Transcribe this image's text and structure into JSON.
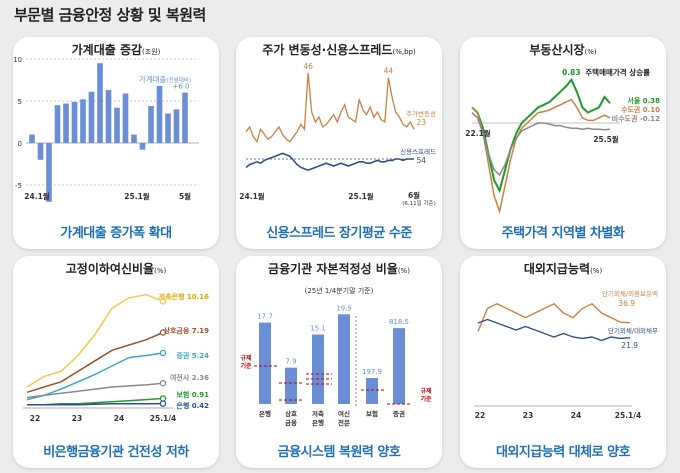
{
  "page_title": "부문별 금융안정 상황 및 복원력",
  "colors": {
    "blue": "#6b8fd6",
    "darkblue": "#2f4f8f",
    "orange": "#cd7f45",
    "green": "#1f9a2b",
    "gray": "#8a8a8a",
    "yellow": "#f2c94c",
    "teal": "#3aa7c8",
    "red": "#c00000",
    "brown": "#a0522d"
  },
  "chart_data": [
    {
      "type": "bar",
      "title": "가계대출 증감",
      "unit": "(조원)",
      "yticks": [
        "10",
        "5",
        "0",
        "-5"
      ],
      "ylim": [
        -5,
        10
      ],
      "xticks": [
        "24.1월",
        "25.1월",
        "5월"
      ],
      "series_label": "가계대출",
      "series_label_note": "(전월대비)",
      "values": [
        1.0,
        -2.0,
        -7.0,
        4.5,
        4.7,
        4.9,
        5.2,
        6.1,
        9.5,
        6.3,
        4.2,
        5.9,
        1.0,
        -0.8,
        4.4,
        6.8,
        3.5,
        4.0,
        6.0
      ],
      "last_label": "+6.0",
      "caption": "가계대출 증가폭 확대"
    },
    {
      "type": "line",
      "title": "주가 변동성·신용스프레드",
      "unit": "(%,bp)",
      "xticks": [
        "24.1월",
        "25.1월",
        "6월"
      ],
      "xnote": "(6.11일 기준)",
      "series": [
        {
          "name": "주가변동성",
          "end_label": "23",
          "peaks": [
            "46",
            "44"
          ],
          "values": [
            22,
            24,
            20,
            18,
            23,
            21,
            19,
            20,
            22,
            24,
            21,
            19,
            18,
            20,
            22,
            25,
            23,
            46,
            30,
            26,
            28,
            24,
            25,
            27,
            29,
            26,
            30,
            33,
            28,
            27,
            26,
            35,
            31,
            29,
            32,
            28,
            30,
            27,
            26,
            44,
            36,
            30,
            28,
            25,
            24,
            26,
            23
          ]
        },
        {
          "name": "신용스프레드",
          "end_label": "54",
          "values": [
            60,
            58,
            57,
            56,
            57,
            55,
            54,
            53,
            52,
            51,
            50,
            51,
            52,
            55,
            58,
            60,
            61,
            62,
            61,
            60,
            59,
            58,
            57,
            58,
            59,
            58,
            57,
            58,
            59,
            58,
            57,
            56,
            56,
            57,
            57,
            56,
            55,
            56,
            56,
            55,
            55,
            54,
            54,
            55,
            54,
            54,
            54
          ]
        }
      ],
      "caption": "신용스프레드 장기평균 수준"
    },
    {
      "type": "line",
      "title": "부동산시장",
      "unit": "(%)",
      "subtitle": "주택매매가격 상승률",
      "xticks": [
        "22.1월",
        "25.5월"
      ],
      "series": [
        {
          "name": "서울",
          "end_label": "0.38",
          "annotation": "0.83",
          "values": [
            0.3,
            0.2,
            -0.1,
            -0.6,
            -1.1,
            -1.3,
            -0.9,
            -0.5,
            -0.2,
            0.0,
            0.1,
            0.2,
            0.3,
            0.35,
            0.4,
            0.5,
            0.6,
            0.7,
            0.83,
            0.6,
            0.3,
            0.2,
            0.25,
            0.3,
            0.5,
            0.38
          ]
        },
        {
          "name": "수도권",
          "end_label": "0.10",
          "values": [
            0.3,
            0.2,
            -0.2,
            -0.8,
            -1.4,
            -1.7,
            -1.2,
            -0.7,
            -0.3,
            -0.1,
            0.0,
            0.1,
            0.2,
            0.22,
            0.25,
            0.3,
            0.35,
            0.4,
            0.45,
            0.3,
            0.1,
            0.05,
            0.05,
            0.1,
            0.15,
            0.1
          ]
        },
        {
          "name": "비수도권",
          "end_label": "-0.12",
          "values": [
            0.2,
            0.1,
            -0.2,
            -0.6,
            -0.9,
            -1.0,
            -0.8,
            -0.5,
            -0.3,
            -0.15,
            -0.1,
            -0.05,
            0.0,
            0.0,
            -0.02,
            -0.05,
            -0.05,
            -0.08,
            -0.1,
            -0.1,
            -0.12,
            -0.1,
            -0.12,
            -0.12,
            -0.13,
            -0.12
          ]
        }
      ],
      "caption": "주택가격 지역별 차별화"
    },
    {
      "type": "line",
      "title": "고정이하여신비율",
      "unit": "(%)",
      "xticks": [
        "22",
        "23",
        "24",
        "25.1/4"
      ],
      "series": [
        {
          "name": "저축은행",
          "value_label": "10.16",
          "values": [
            2.0,
            3.0,
            3.5,
            5.0,
            7.0,
            9.5,
            10.5,
            10.8,
            10.16
          ]
        },
        {
          "name": "상호금융",
          "value_label": "7.19",
          "values": [
            1.5,
            2.0,
            2.5,
            3.5,
            4.5,
            5.5,
            6.0,
            6.5,
            7.19
          ]
        },
        {
          "name": "증권",
          "value_label": "5.24",
          "values": [
            0.8,
            1.2,
            1.8,
            2.5,
            3.2,
            4.0,
            4.8,
            5.0,
            5.24
          ]
        },
        {
          "name": "여전사",
          "value_label": "2.36",
          "values": [
            1.0,
            1.2,
            1.4,
            1.6,
            1.8,
            2.0,
            2.1,
            2.2,
            2.36
          ]
        },
        {
          "name": "보험",
          "value_label": "0.91",
          "values": [
            0.3,
            0.3,
            0.4,
            0.4,
            0.5,
            0.6,
            0.7,
            0.8,
            0.91
          ]
        },
        {
          "name": "은행",
          "value_label": "0.42",
          "values": [
            0.3,
            0.3,
            0.3,
            0.3,
            0.35,
            0.4,
            0.4,
            0.4,
            0.42
          ]
        }
      ],
      "caption": "비은행금융기관 건전성 저하"
    },
    {
      "type": "bar",
      "title": "금융기관 자본적정성 비율",
      "unit": "(%)",
      "subtitle": "(25년 1/4분기말 기준)",
      "categories": [
        "은행",
        "상호\n금융",
        "저축\n은행",
        "여신\n전문",
        "보험",
        "증권"
      ],
      "values": [
        17.7,
        7.9,
        15.1,
        19.5,
        197.9,
        818.5
      ],
      "value_labels": [
        "17.7",
        "7.9",
        "15.1",
        "19.5",
        "197.9",
        "818.5"
      ],
      "reg_label_left": "규제\n기준",
      "reg_label_right": "규제\n기준",
      "caption": "금융시스템 복원력 양호"
    },
    {
      "type": "line",
      "title": "대외지급능력",
      "unit": "(%)",
      "xticks": [
        "22",
        "23",
        "24",
        "25.1/4"
      ],
      "series": [
        {
          "name": "단기외채/외환보유액",
          "end_label": "36.9",
          "values": [
            35,
            40,
            41,
            40,
            39,
            38,
            39,
            40,
            41,
            39,
            38,
            40,
            41,
            39,
            38,
            37,
            36.9
          ]
        },
        {
          "name": "단기외채/대외채무",
          "end_label": "21.9",
          "values": [
            24,
            24.5,
            24,
            23.5,
            23,
            23.5,
            23,
            22.5,
            22,
            22.5,
            22,
            21.8,
            22,
            21.5,
            22,
            21.8,
            21.9
          ]
        }
      ],
      "caption": "대외지급능력 대체로 양호"
    }
  ]
}
